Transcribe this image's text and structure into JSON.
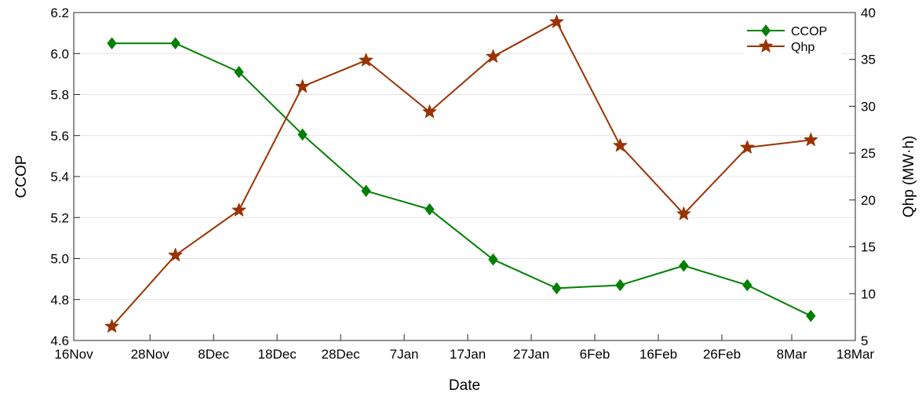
{
  "chart_data": {
    "type": "line",
    "xlabel": "Date",
    "ylabel_left": "CCOP",
    "ylabel_right": "Qhp (MW·h)",
    "x_ticks": [
      "16Nov",
      "28Nov",
      "8Dec",
      "18Dec",
      "28Dec",
      "7Jan",
      "17Jan",
      "27Jan",
      "6Feb",
      "16Feb",
      "26Feb",
      "8Mar",
      "18Mar"
    ],
    "x_range": [
      "16Nov",
      "18Mar"
    ],
    "y_left": {
      "min": 4.6,
      "max": 6.2,
      "ticks": [
        "4.6",
        "4.8",
        "5.0",
        "5.2",
        "5.4",
        "5.6",
        "5.8",
        "6.0",
        "6.2"
      ]
    },
    "y_right": {
      "min": 5,
      "max": 40,
      "ticks": [
        "5",
        "10",
        "15",
        "20",
        "25",
        "30",
        "35",
        "40"
      ]
    },
    "grid": "horizontal",
    "legend_position": "top-right",
    "series": [
      {
        "name": "CCOP",
        "axis": "left",
        "marker": "diamond",
        "color": "#008000",
        "x": [
          "2023-11-22",
          "2023-12-02",
          "2023-12-12",
          "2023-12-22",
          "2024-01-01",
          "2024-01-11",
          "2024-01-21",
          "2024-01-31",
          "2024-02-10",
          "2024-02-20",
          "2024-03-01",
          "2024-03-11"
        ],
        "y": [
          6.05,
          6.05,
          5.91,
          5.605,
          5.33,
          5.24,
          4.995,
          4.855,
          4.87,
          4.965,
          4.87,
          4.72
        ]
      },
      {
        "name": "Qhp",
        "axis": "right",
        "marker": "star",
        "color": "#993300",
        "x": [
          "2023-11-22",
          "2023-12-02",
          "2023-12-12",
          "2023-12-22",
          "2024-01-01",
          "2024-01-11",
          "2024-01-21",
          "2024-01-31",
          "2024-02-10",
          "2024-02-20",
          "2024-03-01",
          "2024-03-11"
        ],
        "y": [
          6.5,
          14.1,
          18.9,
          32.1,
          34.9,
          29.4,
          35.3,
          39.0,
          25.8,
          18.5,
          25.6,
          26.4
        ]
      }
    ]
  }
}
